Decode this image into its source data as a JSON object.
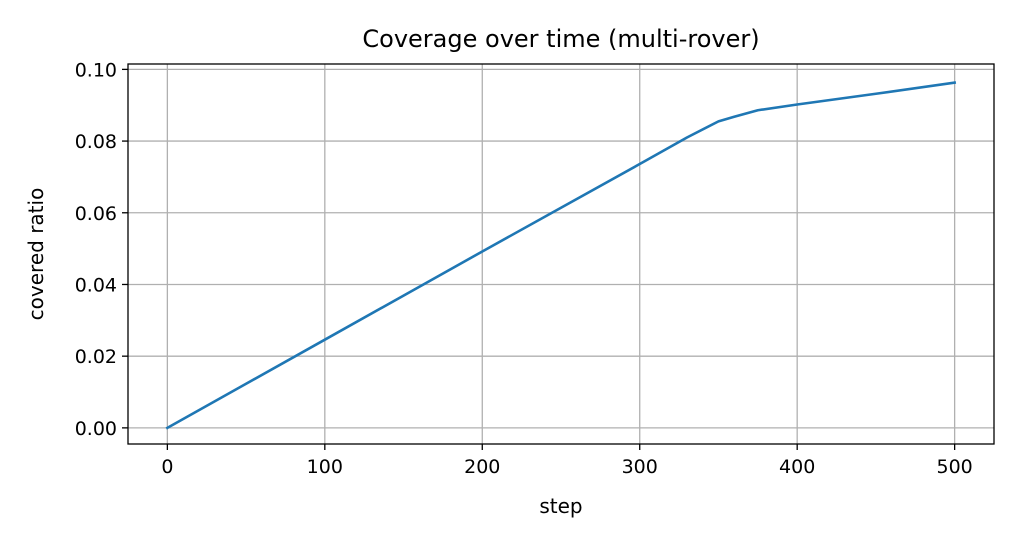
{
  "chart_data": {
    "type": "line",
    "title": "Coverage over time (multi-rover)",
    "xlabel": "step",
    "ylabel": "covered ratio",
    "xlim": [
      -25,
      525
    ],
    "ylim": [
      -0.0045,
      0.1015
    ],
    "xticks": [
      0,
      100,
      200,
      300,
      400,
      500
    ],
    "yticks": [
      0.0,
      0.02,
      0.04,
      0.06,
      0.08,
      0.1
    ],
    "xtick_labels": [
      "0",
      "100",
      "200",
      "300",
      "400",
      "500"
    ],
    "ytick_labels": [
      "0.00",
      "0.02",
      "0.04",
      "0.06",
      "0.08",
      "0.10"
    ],
    "grid": true,
    "series": [
      {
        "color": "#1f77b4",
        "x": [
          0,
          50,
          100,
          150,
          200,
          250,
          300,
          330,
          350,
          360,
          375,
          400,
          450,
          500
        ],
        "y": [
          0.0,
          0.0123,
          0.0246,
          0.0369,
          0.0492,
          0.0614,
          0.0736,
          0.081,
          0.0855,
          0.0868,
          0.0886,
          0.0902,
          0.0932,
          0.0963
        ]
      }
    ]
  }
}
